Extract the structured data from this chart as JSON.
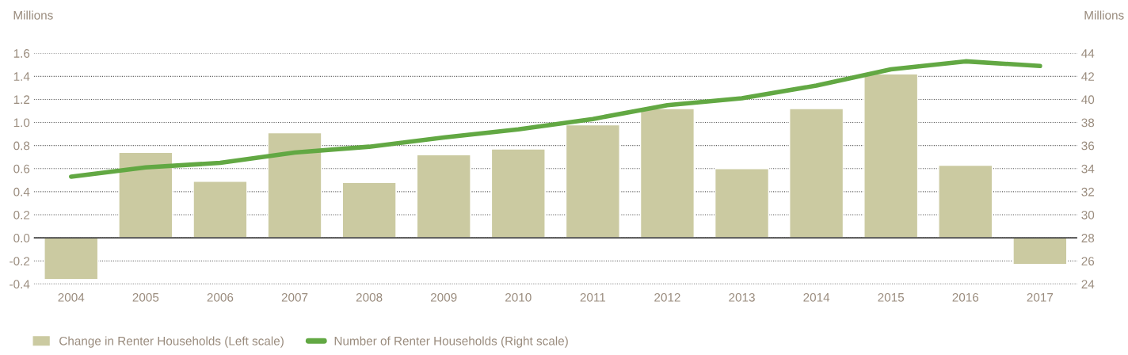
{
  "chart_data": {
    "type": "bar",
    "categories": [
      "2004",
      "2005",
      "2006",
      "2007",
      "2008",
      "2009",
      "2010",
      "2011",
      "2012",
      "2013",
      "2014",
      "2015",
      "2016",
      "2017"
    ],
    "ylabel": "Millions",
    "y2label": "Millions",
    "series": [
      {
        "name": "Change in Renter Households (Left scale)",
        "color": "#cbcaa1",
        "values": [
          -0.36,
          0.74,
          0.49,
          0.91,
          0.48,
          0.72,
          0.77,
          0.98,
          1.12,
          0.6,
          1.12,
          1.42,
          0.63,
          -0.23
        ]
      },
      {
        "name": "Number of Renter Households (Right scale)",
        "type": "line",
        "axis": "y2",
        "color": "#62a843",
        "values": [
          33.3,
          34.1,
          34.5,
          35.4,
          35.9,
          36.7,
          37.4,
          38.3,
          39.5,
          40.1,
          41.2,
          42.6,
          43.3,
          42.9
        ]
      }
    ],
    "ylim": [
      -0.4,
      1.6
    ],
    "yticks": [
      {
        "value": -0.4,
        "label": "-0.4"
      },
      {
        "value": -0.2,
        "label": "-0.2"
      },
      {
        "value": 0,
        "label": "0.0"
      },
      {
        "value": 0.2,
        "label": "0.2"
      },
      {
        "value": 0.4,
        "label": "0.4"
      },
      {
        "value": 0.6,
        "label": "0.6"
      },
      {
        "value": 0.8,
        "label": "0.8"
      },
      {
        "value": 1.0,
        "label": "1.0"
      },
      {
        "value": 1.2,
        "label": "1.2"
      },
      {
        "value": 1.4,
        "label": "1.4"
      },
      {
        "value": 1.6,
        "label": "1.6"
      }
    ],
    "y2lim": [
      24,
      44
    ],
    "y2ticks": [
      24,
      26,
      28,
      30,
      32,
      34,
      36,
      38,
      40,
      42,
      44
    ],
    "ref_lines": [
      {
        "axis": "y",
        "value": 0,
        "color": "#444444"
      }
    ],
    "grid": "y",
    "legend": "bottom left",
    "line_style": "solid",
    "marker": "none"
  }
}
